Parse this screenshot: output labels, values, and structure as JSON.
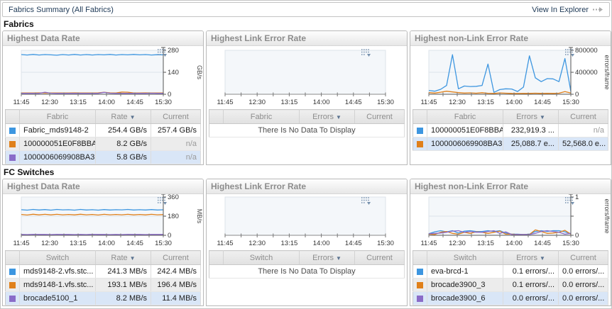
{
  "titlebar": {
    "title": "Fabrics Summary (All Fabrics)",
    "action_label": "View In Explorer"
  },
  "sort_indicator": "▼",
  "colors": {
    "blue": "#3d96e0",
    "orange": "#e0801a",
    "purple": "#8a6cc8",
    "selected_row": "#d9e6f7"
  },
  "sections": [
    {
      "label": "Fabrics",
      "panels": [
        {
          "title": "Highest Data Rate",
          "menu_icon": true,
          "chart_data": {
            "type": "line",
            "x_ticks": [
              "11:45",
              "12:30",
              "13:15",
              "14:00",
              "14:45",
              "15:30"
            ],
            "ylabel": "GB/s",
            "ylim": [
              0,
              280
            ],
            "y_ticks": [
              {
                "v": 0,
                "label": "0"
              },
              {
                "v": 140,
                "label": "140"
              },
              {
                "v": 280,
                "label": "280"
              }
            ],
            "series": [
              {
                "name": "Fabric_mds9148-2",
                "color": "blue",
                "values": [
                  253,
                  250,
                  254,
                  250,
                  253,
                  251,
                  249,
                  253,
                  250,
                  254,
                  250,
                  253,
                  250,
                  253,
                  251,
                  254,
                  250,
                  253,
                  251,
                  254,
                  251,
                  253,
                  250,
                  252,
                  251
                ]
              },
              {
                "name": "100000051E0F8BBA",
                "color": "orange",
                "values": [
                  8,
                  8,
                  8,
                  9,
                  8,
                  8,
                  8,
                  8,
                  8,
                  9,
                  8,
                  8,
                  8,
                  9,
                  13,
                  9,
                  8,
                  14,
                  13,
                  8,
                  8,
                  9,
                  8,
                  8,
                  8
                ]
              },
              {
                "name": "1000006069908BA3",
                "color": "purple",
                "values": [
                  6,
                  6,
                  6,
                  6,
                  13,
                  7,
                  6,
                  6,
                  6,
                  6,
                  6,
                  6,
                  6,
                  6,
                  12,
                  7,
                  6,
                  6,
                  6,
                  6,
                  6,
                  6,
                  7,
                  6,
                  6
                ]
              }
            ]
          },
          "table": {
            "headers": [
              "Fabric",
              "Rate",
              "Current"
            ],
            "sort_index": 1,
            "empty_text": null,
            "rows": [
              {
                "swatch": "blue",
                "name": "Fabric_mds9148-2",
                "value": "254.4 GB/s",
                "current": "257.4 GB/s",
                "selected": false
              },
              {
                "swatch": "orange",
                "name": "100000051E0F8BBA",
                "value": "8.2 GB/s",
                "current": "n/a",
                "selected": false
              },
              {
                "swatch": "purple",
                "name": "1000006069908BA3",
                "value": "5.8 GB/s",
                "current": "n/a",
                "selected": true
              }
            ]
          }
        },
        {
          "title": "Highest Link Error Rate",
          "menu_icon": false,
          "chart_data": {
            "type": "line",
            "x_ticks": [
              "11:45",
              "12:30",
              "13:15",
              "14:00",
              "14:45",
              "15:30"
            ],
            "ylabel": "",
            "ylim": [
              0,
              1
            ],
            "y_ticks": [],
            "series": []
          },
          "table": {
            "headers": [
              "Fabric",
              "Errors",
              "Current"
            ],
            "sort_index": 1,
            "empty_text": "There Is No Data To Display",
            "rows": []
          }
        },
        {
          "title": "Highest non-Link Error Rate",
          "menu_icon": false,
          "chart_data": {
            "type": "line",
            "x_ticks": [
              "11:45",
              "12:30",
              "13:15",
              "14:00",
              "14:45",
              "15:30"
            ],
            "ylabel": "errors/frame",
            "ylim": [
              0,
              800000
            ],
            "y_ticks": [
              {
                "v": 0,
                "label": "0"
              },
              {
                "v": 400000,
                "label": "400000"
              },
              {
                "v": 800000,
                "label": "800000"
              }
            ],
            "series": [
              {
                "name": "100000051E0F8BBA",
                "color": "blue",
                "values": [
                  70000,
                  55000,
                  90000,
                  160000,
                  720000,
                  100000,
                  150000,
                  140000,
                  145000,
                  160000,
                  550000,
                  35000,
                  85000,
                  100000,
                  95000,
                  50000,
                  130000,
                  700000,
                  300000,
                  230000,
                  285000,
                  280000,
                  230000,
                  650000,
                  55000
                ]
              },
              {
                "name": "1000006069908BA3",
                "color": "orange",
                "values": [
                  30000,
                  22000,
                  38000,
                  55000,
                  42000,
                  30000,
                  22000,
                  26000,
                  20000,
                  28000,
                  18000,
                  15000,
                  24000,
                  20000,
                  15000,
                  14000,
                  15000,
                  16000,
                  20000,
                  15000,
                  18000,
                  15000,
                  20000,
                  48000,
                  22000
                ]
              }
            ]
          },
          "table": {
            "headers": [
              "Fabric",
              "Errors",
              "Current"
            ],
            "sort_index": 1,
            "empty_text": null,
            "rows": [
              {
                "swatch": "blue",
                "name": "100000051E0F8BBA",
                "value": "232,919.3 ...",
                "current": "n/a",
                "selected": false
              },
              {
                "swatch": "orange",
                "name": "1000006069908BA3",
                "value": "25,088.7 e...",
                "current": "52,568.0 e...",
                "selected": true
              }
            ]
          }
        }
      ]
    },
    {
      "label": "FC Switches",
      "panels": [
        {
          "title": "Highest Data Rate",
          "menu_icon": false,
          "chart_data": {
            "type": "line",
            "x_ticks": [
              "11:45",
              "12:30",
              "13:15",
              "14:00",
              "14:45",
              "15:30"
            ],
            "ylabel": "MB/s",
            "ylim": [
              0,
              360
            ],
            "y_ticks": [
              {
                "v": 0,
                "label": "0"
              },
              {
                "v": 180,
                "label": "180"
              },
              {
                "v": 360,
                "label": "360"
              }
            ],
            "series": [
              {
                "name": "mds9148-2.vfs.stc...",
                "color": "blue",
                "values": [
                  241,
                  237,
                  243,
                  238,
                  242,
                  237,
                  243,
                  239,
                  241,
                  237,
                  243,
                  238,
                  241,
                  237,
                  242,
                  238,
                  241,
                  239,
                  243,
                  238,
                  241,
                  238,
                  242,
                  238,
                  240
                ]
              },
              {
                "name": "mds9148-1.vfs.stc...",
                "color": "orange",
                "values": [
                  196,
                  191,
                  198,
                  192,
                  197,
                  192,
                  197,
                  193,
                  196,
                  192,
                  198,
                  193,
                  196,
                  191,
                  197,
                  193,
                  196,
                  193,
                  197,
                  192,
                  196,
                  192,
                  197,
                  193,
                  195
                ]
              },
              {
                "name": "brocade5100_1",
                "color": "purple",
                "values": [
                  8,
                  7,
                  9,
                  8,
                  8,
                  7,
                  9,
                  8,
                  8,
                  7,
                  8,
                  7,
                  9,
                  8,
                  8,
                  7,
                  8,
                  7,
                  9,
                  8,
                  8,
                  7,
                  8,
                  8,
                  8
                ]
              }
            ]
          },
          "table": {
            "headers": [
              "Switch",
              "Rate",
              "Current"
            ],
            "sort_index": 1,
            "empty_text": null,
            "rows": [
              {
                "swatch": "blue",
                "name": "mds9148-2.vfs.stc...",
                "value": "241.3 MB/s",
                "current": "242.4 MB/s",
                "selected": false
              },
              {
                "swatch": "orange",
                "name": "mds9148-1.vfs.stc...",
                "value": "193.1 MB/s",
                "current": "196.4 MB/s",
                "selected": false
              },
              {
                "swatch": "purple",
                "name": "brocade5100_1",
                "value": "8.2 MB/s",
                "current": "11.4 MB/s",
                "selected": true
              }
            ]
          }
        },
        {
          "title": "Highest Link Error Rate",
          "menu_icon": false,
          "chart_data": {
            "type": "line",
            "x_ticks": [
              "11:45",
              "12:30",
              "13:15",
              "14:00",
              "14:45",
              "15:30"
            ],
            "ylabel": "",
            "ylim": [
              0,
              1
            ],
            "y_ticks": [],
            "series": []
          },
          "table": {
            "headers": [
              "Switch",
              "Errors",
              "Current"
            ],
            "sort_index": 1,
            "empty_text": "There Is No Data To Display",
            "rows": []
          }
        },
        {
          "title": "Highest non-Link Error Rate",
          "menu_icon": false,
          "chart_data": {
            "type": "line",
            "x_ticks": [
              "11:45",
              "12:30",
              "13:15",
              "14:00",
              "14:45",
              "15:30"
            ],
            "ylabel": "errors/frame",
            "ylim": [
              0,
              1
            ],
            "y_ticks": [
              {
                "v": 0,
                "label": "0"
              },
              {
                "v": 0.5,
                "label": ""
              },
              {
                "v": 1,
                "label": "1"
              }
            ],
            "series": [
              {
                "name": "eva-brcd-1",
                "color": "blue",
                "values": [
                  0.04,
                  0.09,
                  0.12,
                  0.09,
                  0.12,
                  0.06,
                  0.11,
                  0.12,
                  0.1,
                  0.1,
                  0.12,
                  0.1,
                  0.12,
                  0.06,
                  0.03,
                  0.03,
                  0.02,
                  0.03,
                  0.1,
                  0.12,
                  0.1,
                  0.12,
                  0.12,
                  0.09,
                  0.04
                ]
              },
              {
                "name": "brocade3900_3",
                "color": "orange",
                "values": [
                  0.03,
                  0.02,
                  0.08,
                  0.1,
                  0.05,
                  0.03,
                  0.08,
                  0.05,
                  0.09,
                  0.08,
                  0.05,
                  0.08,
                  0.11,
                  0.03,
                  0.03,
                  0.02,
                  0.02,
                  0.02,
                  0.14,
                  0.1,
                  0.05,
                  0.06,
                  0.08,
                  0.13,
                  0.03
                ]
              },
              {
                "name": "brocade3900_6",
                "color": "purple",
                "values": [
                  0.04,
                  0.05,
                  0.06,
                  0.08,
                  0.11,
                  0.12,
                  0.08,
                  0.1,
                  0.08,
                  0.08,
                  0.1,
                  0.12,
                  0.05,
                  0.09,
                  0.02,
                  0.02,
                  0.02,
                  0.02,
                  0.05,
                  0.1,
                  0.12,
                  0.1,
                  0.08,
                  0.03,
                  0.05
                ]
              }
            ]
          },
          "table": {
            "headers": [
              "Switch",
              "Errors",
              "Current"
            ],
            "sort_index": 1,
            "empty_text": null,
            "rows": [
              {
                "swatch": "blue",
                "name": "eva-brcd-1",
                "value": "0.1 errors/...",
                "current": "0.0 errors/...",
                "selected": false
              },
              {
                "swatch": "orange",
                "name": "brocade3900_3",
                "value": "0.1 errors/...",
                "current": "0.0 errors/...",
                "selected": false
              },
              {
                "swatch": "purple",
                "name": "brocade3900_6",
                "value": "0.0 errors/...",
                "current": "0.0 errors/...",
                "selected": true
              }
            ]
          }
        }
      ]
    }
  ]
}
